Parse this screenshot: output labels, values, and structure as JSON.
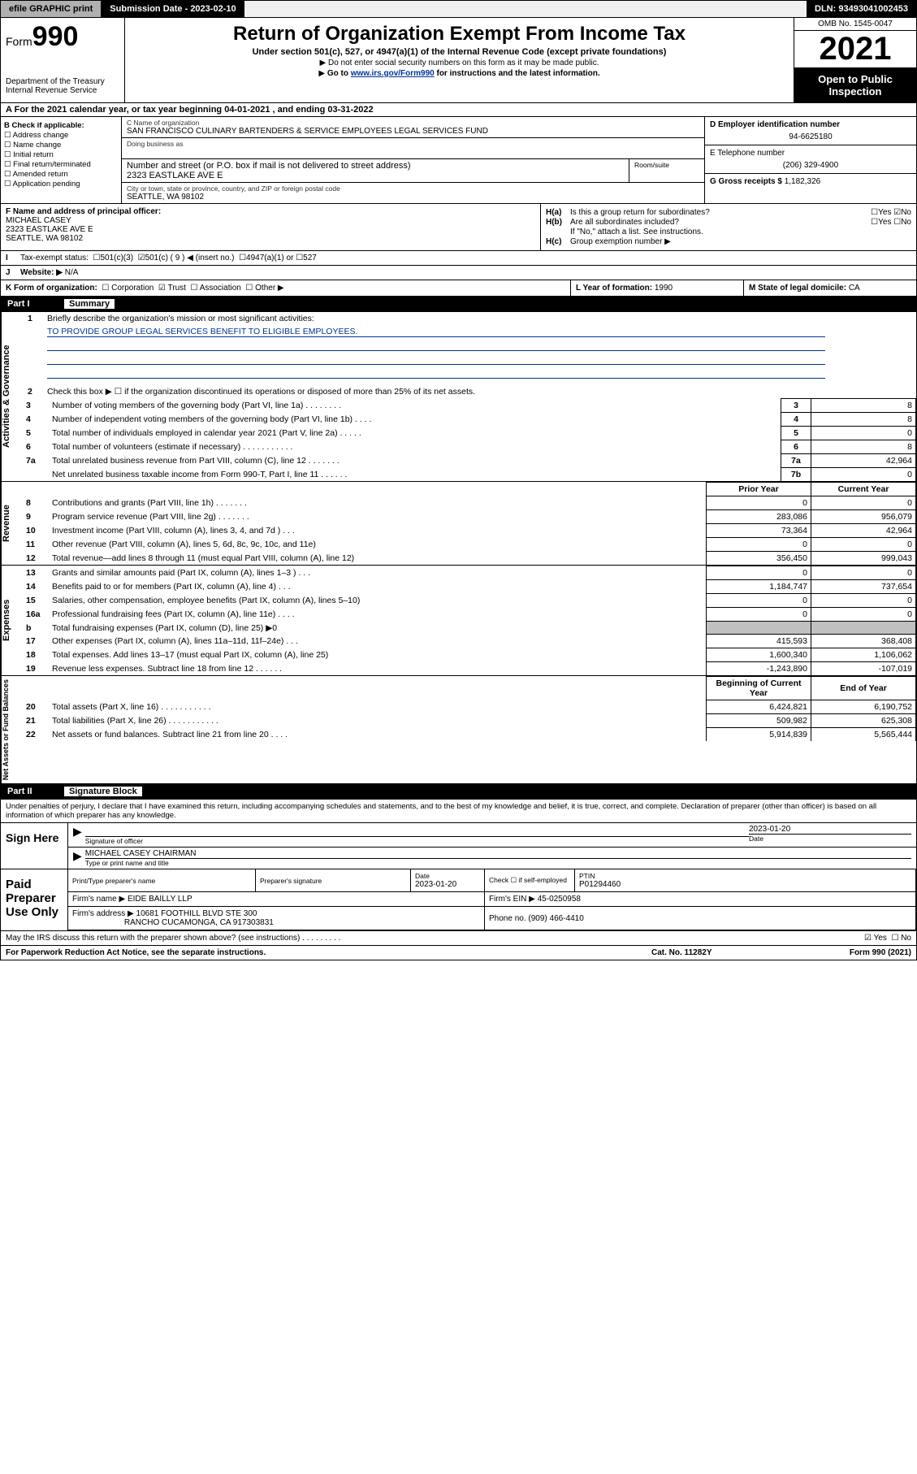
{
  "topbar": {
    "efile": "efile GRAPHIC print",
    "subdate_label": "Submission Date - 2023-02-10",
    "dln": "DLN: 93493041002453"
  },
  "header": {
    "form_prefix": "Form",
    "form_num": "990",
    "dept": "Department of the Treasury",
    "irs": "Internal Revenue Service",
    "title": "Return of Organization Exempt From Income Tax",
    "sub": "Under section 501(c), 527, or 4947(a)(1) of the Internal Revenue Code (except private foundations)",
    "note1": "Do not enter social security numbers on this form as it may be made public.",
    "note2_pre": "Go to ",
    "note2_link": "www.irs.gov/Form990",
    "note2_post": " for instructions and the latest information.",
    "omb": "OMB No. 1545-0047",
    "year": "2021",
    "open": "Open to Public Inspection"
  },
  "tax_year": "For the 2021 calendar year, or tax year beginning 04-01-2021  , and ending 03-31-2022",
  "check_b": {
    "label": "B Check if applicable:",
    "items": [
      "Address change",
      "Name change",
      "Initial return",
      "Final return/terminated",
      "Amended return",
      "Application pending"
    ]
  },
  "org": {
    "name_label": "C Name of organization",
    "name": "SAN FRANCISCO CULINARY BARTENDERS & SERVICE EMPLOYEES LEGAL SERVICES FUND",
    "dba_label": "Doing business as",
    "addr_label": "Number and street (or P.O. box if mail is not delivered to street address)",
    "room_label": "Room/suite",
    "addr": "2323 EASTLAKE AVE E",
    "city_label": "City or town, state or province, country, and ZIP or foreign postal code",
    "city": "SEATTLE, WA  98102"
  },
  "right_col": {
    "ein_label": "D Employer identification number",
    "ein": "94-6625180",
    "phone_label": "E Telephone number",
    "phone": "(206) 329-4900",
    "gross_label": "G Gross receipts $",
    "gross": "1,182,326"
  },
  "officer": {
    "label": "F  Name and address of principal officer:",
    "name": "MICHAEL CASEY",
    "addr1": "2323 EASTLAKE AVE E",
    "addr2": "SEATTLE, WA  98102"
  },
  "h_section": {
    "ha_q": "Is this a group return for subordinates?",
    "ha_yes": "Yes",
    "ha_no": "No",
    "hb_q": "Are all subordinates included?",
    "hb_note": "If \"No,\" attach a list. See instructions.",
    "hc_label": "Group exemption number ▶"
  },
  "tax_exempt": {
    "label": "Tax-exempt status:",
    "c3": "501(c)(3)",
    "c9": "501(c) ( 9 ) ◀ (insert no.)",
    "a1": "4947(a)(1) or",
    "s527": "527"
  },
  "website": {
    "label": "Website: ▶",
    "val": "N/A"
  },
  "row_k": {
    "label": "K Form of organization:",
    "corp": "Corporation",
    "trust": "Trust",
    "assoc": "Association",
    "other": "Other ▶",
    "l_label": "L Year of formation:",
    "l_val": "1990",
    "m_label": "M State of legal domicile:",
    "m_val": "CA"
  },
  "part1": {
    "pn": "Part I",
    "pt": "Summary"
  },
  "summary": {
    "vlabel1": "Activities & Governance",
    "q1": "Briefly describe the organization's mission or most significant activities:",
    "q1_ans": "TO PROVIDE GROUP LEGAL SERVICES BENEFIT TO ELIGIBLE EMPLOYEES.",
    "q2": "Check this box ▶ ☐  if the organization discontinued its operations or disposed of more than 25% of its net assets.",
    "lines_gov": [
      {
        "n": "3",
        "t": "Number of voting members of the governing body (Part VI, line 1a)  .   .   .   .   .   .   .   .",
        "box": "3",
        "v": "8"
      },
      {
        "n": "4",
        "t": "Number of independent voting members of the governing body (Part VI, line 1b)   .   .   .   .",
        "box": "4",
        "v": "8"
      },
      {
        "n": "5",
        "t": "Total number of individuals employed in calendar year 2021 (Part V, line 2a)  .   .   .   .   .",
        "box": "5",
        "v": "0"
      },
      {
        "n": "6",
        "t": "Total number of volunteers (estimate if necessary)   .   .   .   .   .   .   .   .   .   .   .",
        "box": "6",
        "v": "8"
      },
      {
        "n": "7a",
        "t": "Total unrelated business revenue from Part VIII, column (C), line 12  .   .   .   .   .   .   .",
        "box": "7a",
        "v": "42,964"
      },
      {
        "n": "",
        "t": "Net unrelated business taxable income from Form 990-T, Part I, line 11   .   .   .   .   .   .",
        "box": "7b",
        "v": "0"
      }
    ],
    "head_prior": "Prior Year",
    "head_curr": "Current Year",
    "vlabel2": "Revenue",
    "lines_rev": [
      {
        "n": "8",
        "t": "Contributions and grants (Part VIII, line 1h)   .   .   .   .   .   .   .",
        "p": "0",
        "c": "0"
      },
      {
        "n": "9",
        "t": "Program service revenue (Part VIII, line 2g)  .   .   .   .   .   .   .",
        "p": "283,086",
        "c": "956,079"
      },
      {
        "n": "10",
        "t": "Investment income (Part VIII, column (A), lines 3, 4, and 7d )   .   .   .",
        "p": "73,364",
        "c": "42,964"
      },
      {
        "n": "11",
        "t": "Other revenue (Part VIII, column (A), lines 5, 6d, 8c, 9c, 10c, and 11e)",
        "p": "0",
        "c": "0"
      },
      {
        "n": "12",
        "t": "Total revenue—add lines 8 through 11 (must equal Part VIII, column (A), line 12)",
        "p": "356,450",
        "c": "999,043"
      }
    ],
    "vlabel3": "Expenses",
    "lines_exp": [
      {
        "n": "13",
        "t": "Grants and similar amounts paid (Part IX, column (A), lines 1–3 )  .   .   .",
        "p": "0",
        "c": "0"
      },
      {
        "n": "14",
        "t": "Benefits paid to or for members (Part IX, column (A), line 4)  .   .   .",
        "p": "1,184,747",
        "c": "737,654"
      },
      {
        "n": "15",
        "t": "Salaries, other compensation, employee benefits (Part IX, column (A), lines 5–10)",
        "p": "0",
        "c": "0"
      },
      {
        "n": "16a",
        "t": "Professional fundraising fees (Part IX, column (A), line 11e)   .   .   .   .",
        "p": "0",
        "c": "0"
      },
      {
        "n": "b",
        "t": "Total fundraising expenses (Part IX, column (D), line 25) ▶0",
        "grey": true
      },
      {
        "n": "17",
        "t": "Other expenses (Part IX, column (A), lines 11a–11d, 11f–24e)   .   .   .",
        "p": "415,593",
        "c": "368,408"
      },
      {
        "n": "18",
        "t": "Total expenses. Add lines 13–17 (must equal Part IX, column (A), line 25)",
        "p": "1,600,340",
        "c": "1,106,062"
      },
      {
        "n": "19",
        "t": "Revenue less expenses. Subtract line 18 from line 12  .   .   .   .   .   .",
        "p": "-1,243,890",
        "c": "-107,019"
      }
    ],
    "vlabel4": "Net Assets or Fund Balances",
    "head_begin": "Beginning of Current Year",
    "head_end": "End of Year",
    "lines_net": [
      {
        "n": "20",
        "t": "Total assets (Part X, line 16)   .   .   .   .   .   .   .   .   .   .   .",
        "p": "6,424,821",
        "c": "6,190,752"
      },
      {
        "n": "21",
        "t": "Total liabilities (Part X, line 26)  .   .   .   .   .   .   .   .   .   .   .",
        "p": "509,982",
        "c": "625,308"
      },
      {
        "n": "22",
        "t": "Net assets or fund balances. Subtract line 21 from line 20  .   .   .   .",
        "p": "5,914,839",
        "c": "5,565,444"
      }
    ]
  },
  "part2": {
    "pn": "Part II",
    "pt": "Signature Block"
  },
  "sig": {
    "decl": "Under penalties of perjury, I declare that I have examined this return, including accompanying schedules and statements, and to the best of my knowledge and belief, it is true, correct, and complete. Declaration of preparer (other than officer) is based on all information of which preparer has any knowledge.",
    "sign_here": "Sign Here",
    "sig_label": "Signature of officer",
    "date_label": "Date",
    "date_val": "2023-01-20",
    "name": "MICHAEL CASEY CHAIRMAN",
    "name_label": "Type or print name and title"
  },
  "prep": {
    "label": "Paid Preparer Use Only",
    "h1": "Print/Type preparer's name",
    "h2": "Preparer's signature",
    "h3": "Date",
    "date": "2023-01-20",
    "h4_pre": "Check ☐ if self-employed",
    "h5": "PTIN",
    "ptin": "P01294460",
    "firm_label": "Firm's name    ▶",
    "firm": "EIDE BAILLY LLP",
    "ein_label": "Firm's EIN ▶",
    "ein": "45-0250958",
    "addr_label": "Firm's address ▶",
    "addr1": "10681 FOOTHILL BLVD STE 300",
    "addr2": "RANCHO CUCAMONGA, CA  917303831",
    "phone_label": "Phone no.",
    "phone": "(909) 466-4410"
  },
  "discuss": {
    "q": "May the IRS discuss this return with the preparer shown above? (see instructions)   .   .   .   .   .   .   .   .   .",
    "yes": "Yes",
    "no": "No"
  },
  "footer": {
    "left": "For Paperwork Reduction Act Notice, see the separate instructions.",
    "mid": "Cat. No. 11282Y",
    "right": "Form 990 (2021)"
  }
}
